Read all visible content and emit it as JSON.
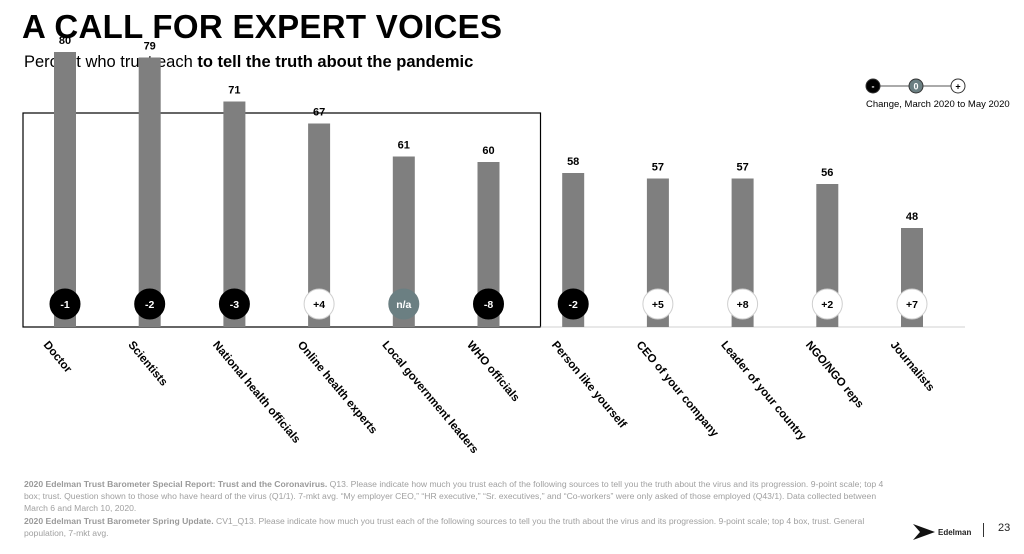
{
  "title": "A CALL FOR EXPERT VOICES",
  "subtitle": {
    "plain": "Percent who trust each ",
    "bold": "to tell the truth about the pandemic"
  },
  "legend": {
    "caption": "Change, March 2020 to May 2020",
    "items": [
      {
        "symbol": "-",
        "fill": "#000000",
        "text_color": "#ffffff"
      },
      {
        "symbol": "0",
        "fill": "#6b7f82",
        "text_color": "#ffffff"
      },
      {
        "symbol": "+",
        "fill": "#ffffff",
        "text_color": "#000000"
      }
    ]
  },
  "colors": {
    "bar": "#7f7f7f",
    "negative": "#000000",
    "neutral": "#6b7f82",
    "positive": "#ffffff"
  },
  "chart_data": {
    "type": "bar",
    "categories": [
      "Doctor",
      "Scientists",
      "National health officials",
      "Online health experts",
      "Local government leaders",
      "WHO officials",
      "Person like yourself",
      "CEO of your company",
      "Leader of your country",
      "NGO/NGO reps",
      "Journalists"
    ],
    "values": [
      80,
      79,
      71,
      67,
      61,
      60,
      58,
      57,
      57,
      56,
      48
    ],
    "changes": [
      "-1",
      "-2",
      "-3",
      "+4",
      "n/a",
      "-8",
      "-2",
      "+5",
      "+8",
      "+2",
      "+7"
    ],
    "ylim": [
      0,
      100
    ],
    "grid": false,
    "highlight_box": {
      "first": 0,
      "last": 5
    }
  },
  "footnotes": [
    {
      "bold": "2020 Edelman Trust Barometer Special Report: Trust and the Coronavirus.",
      "text": " Q13. Please indicate how much you trust each of the following sources to tell you the truth about the virus and its progression. 9-point scale; top 4 box; trust. Question shown to those who have heard of the virus (Q1/1). 7-mkt avg. “My employer CEO,” “HR executive,” “Sr. executives,” and “Co-workers” were only asked of those employed (Q43/1). Data collected between March 6 and March 10, 2020."
    },
    {
      "bold": "2020 Edelman Trust Barometer Spring Update.",
      "text": " CV1_Q13. Please indicate how much you trust each of the following sources to tell you the truth about the virus and its progression. 9-point scale; top 4 box, trust. General population, 7-mkt avg."
    }
  ],
  "logo_text": "Edelman",
  "page_number": "23"
}
